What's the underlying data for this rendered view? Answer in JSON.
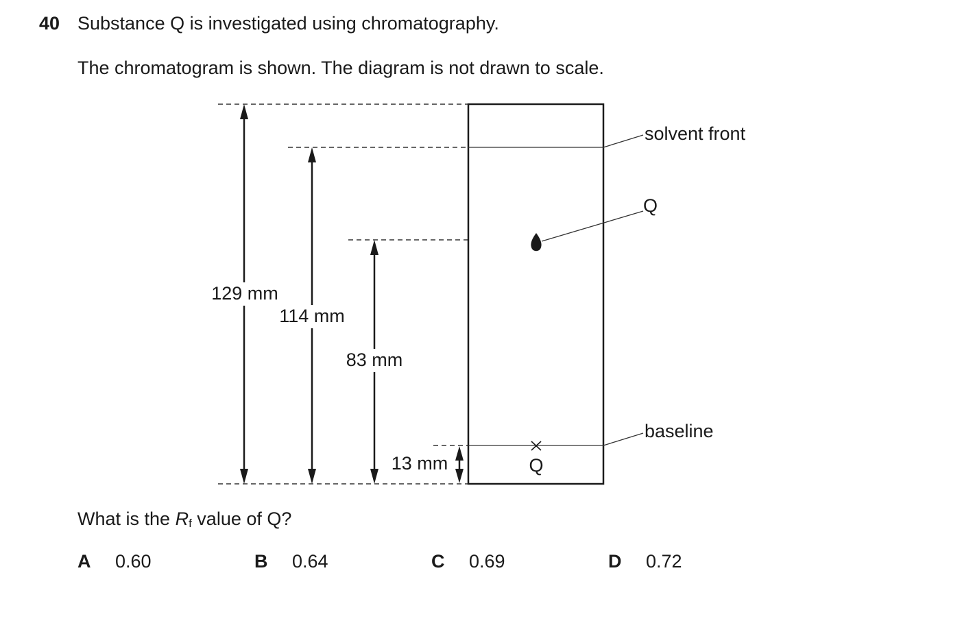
{
  "question": {
    "number": "40",
    "stem": "Substance Q is investigated using chromatography.",
    "intro": "The chromatogram is shown. The diagram is not drawn to scale."
  },
  "diagram": {
    "labels": {
      "solvent_front": "solvent front",
      "spot": "Q",
      "baseline": "baseline",
      "start": "Q"
    },
    "measurements": [
      "129 mm",
      "114 mm",
      "83 mm",
      "13 mm"
    ]
  },
  "prompt": {
    "before": "What is the ",
    "symbol": "R",
    "subscript": "f",
    "after": " value of Q?"
  },
  "options": [
    {
      "letter": "A",
      "text": "0.60"
    },
    {
      "letter": "B",
      "text": "0.64"
    },
    {
      "letter": "C",
      "text": "0.69"
    },
    {
      "letter": "D",
      "text": "0.72"
    }
  ]
}
